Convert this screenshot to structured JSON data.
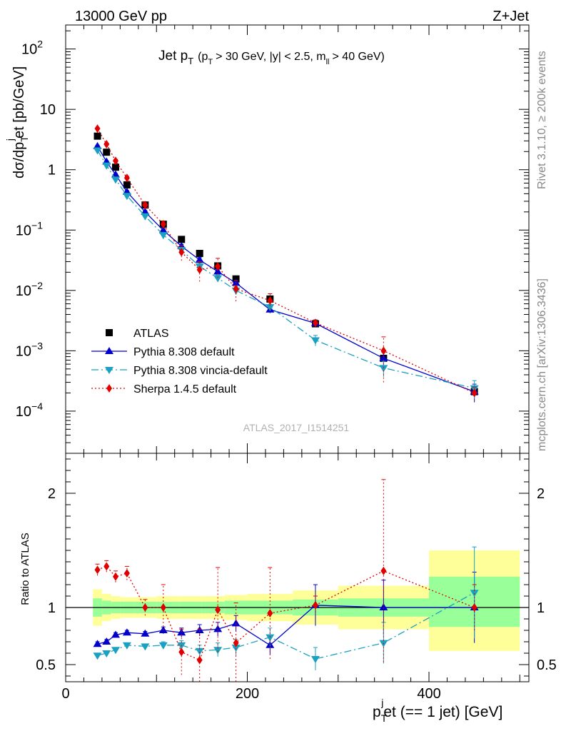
{
  "header": {
    "left": "13000 GeV pp",
    "right": "Z+Jet"
  },
  "side_labels": {
    "rivet": "Rivet 3.1.10, ≥ 200k events",
    "mcplots": "mcplots.cern.ch [arXiv:1306.3436]"
  },
  "analysis_id": "ATLAS_2017_I1514251",
  "chart_data": [
    {
      "type": "scatter",
      "panel": "main",
      "title": "Jet p_T (p_T > 30 GeV, |y| < 2.5, m_ll > 40 GeV)",
      "title_parts": {
        "main": "Jet p",
        "main_sub": "T",
        "cut1": "(p",
        "cut1_sub": "T",
        "cut2": "> 30 GeV, |y| < 2.5, m",
        "cut2_sub": "ll",
        "cut3": "> 40 GeV)"
      },
      "ylabel": "dσ/dp_T^j et [pb/GeV]",
      "ylabel_parts": {
        "a": "dσ/dp",
        "a_sub": "T",
        "a_sup": "j",
        "b": "et [pb/GeV]"
      },
      "xlim": [
        0,
        510
      ],
      "ylim": [
        2e-05,
        250
      ],
      "yscale": "log",
      "yticks": [
        {
          "v": 0.0001,
          "label": "10",
          "exp": "−4"
        },
        {
          "v": 0.001,
          "label": "10",
          "exp": "−3"
        },
        {
          "v": 0.01,
          "label": "10",
          "exp": "−2"
        },
        {
          "v": 0.1,
          "label": "10",
          "exp": "−1"
        },
        {
          "v": 1,
          "label": "1",
          "exp": ""
        },
        {
          "v": 10,
          "label": "10",
          "exp": ""
        },
        {
          "v": 100,
          "label": "10",
          "exp": "2"
        }
      ],
      "legend_position": "bottom-left",
      "x": [
        35,
        45,
        55,
        67.5,
        87.5,
        107.5,
        127.5,
        147.5,
        167.5,
        187.5,
        225,
        275,
        350,
        450
      ],
      "series": [
        {
          "name": "ATLAS",
          "color": "#000000",
          "marker": "square",
          "values": [
            3.6,
            1.95,
            1.1,
            0.56,
            0.26,
            0.125,
            0.07,
            0.041,
            0.0255,
            0.0155,
            0.0072,
            0.0028,
            0.00075,
            0.00021
          ],
          "errors": [
            0,
            0,
            0,
            0,
            0,
            0,
            0,
            0,
            0,
            0,
            0,
            0,
            0,
            0
          ]
        },
        {
          "name": "Pythia 8.308 default",
          "color": "#0000cc",
          "marker": "triangle-up",
          "line": "solid",
          "values": [
            2.45,
            1.36,
            0.83,
            0.43,
            0.2,
            0.099,
            0.054,
            0.032,
            0.0205,
            0.0133,
            0.0048,
            0.00285,
            0.00075,
            0.00021
          ],
          "errors": [
            0.08,
            0.05,
            0.03,
            0.02,
            0.01,
            0.006,
            0.004,
            0.003,
            0.002,
            0.0015,
            0.0006,
            0.0004,
            0.0002,
            7e-05
          ]
        },
        {
          "name": "Pythia 8.308 vincia-default",
          "color": "#1aa0c0",
          "marker": "triangle-down",
          "line": "dashdot",
          "values": [
            2.1,
            1.18,
            0.69,
            0.37,
            0.17,
            0.083,
            0.047,
            0.025,
            0.016,
            0.01,
            0.0053,
            0.0015,
            0.00052,
            0.00024
          ],
          "errors": [
            0.07,
            0.04,
            0.03,
            0.02,
            0.01,
            0.005,
            0.004,
            0.003,
            0.002,
            0.0015,
            0.0006,
            0.0003,
            0.00015,
            8e-05
          ]
        },
        {
          "name": "Sherpa 1.4.5 default",
          "color": "#e00000",
          "marker": "diamond",
          "line": "dotted",
          "values": [
            4.8,
            2.65,
            1.4,
            0.73,
            0.26,
            0.125,
            0.043,
            0.022,
            0.025,
            0.0106,
            0.0068,
            0.0029,
            0.001,
            0.0002
          ],
          "errors": [
            0.2,
            0.12,
            0.08,
            0.05,
            0.02,
            0.015,
            0.012,
            0.008,
            0.009,
            0.004,
            0.002,
            0.0003,
            0.0007,
            5e-05
          ]
        }
      ]
    },
    {
      "type": "scatter",
      "panel": "ratio",
      "ylabel": "Ratio to ATLAS",
      "xlabel": "p_T^j et (== 1 jet) [GeV]",
      "xlabel_parts": {
        "a": "p",
        "a_sub": "T",
        "a_sup": "j",
        "b": "et (== 1 jet) [GeV]"
      },
      "xlim": [
        0,
        510
      ],
      "ylim": [
        0.35,
        2.35
      ],
      "xticks": [
        0,
        200,
        400
      ],
      "yticks": [
        0.5,
        1,
        2
      ],
      "bins": [
        {
          "x0": 30,
          "x1": 40,
          "band_inner": [
            0.92,
            1.08
          ],
          "band_outer": [
            0.84,
            1.16
          ]
        },
        {
          "x0": 40,
          "x1": 50,
          "band_inner": [
            0.94,
            1.06
          ],
          "band_outer": [
            0.88,
            1.12
          ]
        },
        {
          "x0": 50,
          "x1": 60,
          "band_inner": [
            0.95,
            1.05
          ],
          "band_outer": [
            0.9,
            1.1
          ]
        },
        {
          "x0": 60,
          "x1": 75,
          "band_inner": [
            0.95,
            1.05
          ],
          "band_outer": [
            0.91,
            1.09
          ]
        },
        {
          "x0": 75,
          "x1": 100,
          "band_inner": [
            0.95,
            1.05
          ],
          "band_outer": [
            0.91,
            1.09
          ]
        },
        {
          "x0": 100,
          "x1": 125,
          "band_inner": [
            0.95,
            1.05
          ],
          "band_outer": [
            0.9,
            1.1
          ]
        },
        {
          "x0": 125,
          "x1": 150,
          "band_inner": [
            0.95,
            1.05
          ],
          "band_outer": [
            0.9,
            1.1
          ]
        },
        {
          "x0": 150,
          "x1": 175,
          "band_inner": [
            0.95,
            1.05
          ],
          "band_outer": [
            0.9,
            1.1
          ]
        },
        {
          "x0": 175,
          "x1": 200,
          "band_inner": [
            0.94,
            1.06
          ],
          "band_outer": [
            0.89,
            1.11
          ]
        },
        {
          "x0": 200,
          "x1": 250,
          "band_inner": [
            0.94,
            1.06
          ],
          "band_outer": [
            0.88,
            1.12
          ]
        },
        {
          "x0": 250,
          "x1": 300,
          "band_inner": [
            0.93,
            1.07
          ],
          "band_outer": [
            0.85,
            1.15
          ]
        },
        {
          "x0": 300,
          "x1": 400,
          "band_inner": [
            0.92,
            1.08
          ],
          "band_outer": [
            0.81,
            1.19
          ]
        },
        {
          "x0": 400,
          "x1": 500,
          "band_inner": [
            0.83,
            1.27
          ],
          "band_outer": [
            0.62,
            1.5
          ]
        }
      ],
      "x": [
        35,
        45,
        55,
        67.5,
        87.5,
        107.5,
        127.5,
        147.5,
        167.5,
        187.5,
        225,
        275,
        350,
        450
      ],
      "series": [
        {
          "name": "Pythia 8.308 default",
          "color": "#0000cc",
          "marker": "triangle-up",
          "line": "solid",
          "values": [
            0.68,
            0.7,
            0.76,
            0.78,
            0.77,
            0.8,
            0.78,
            0.8,
            0.81,
            0.86,
            0.67,
            1.02,
            1.0,
            1.0
          ],
          "errors": [
            0.02,
            0.02,
            0.02,
            0.02,
            0.02,
            0.03,
            0.04,
            0.05,
            0.06,
            0.07,
            0.08,
            0.18,
            0.24,
            0.31
          ]
        },
        {
          "name": "Pythia 8.308 vincia-default",
          "color": "#1aa0c0",
          "marker": "triangle-down",
          "line": "dashdot",
          "values": [
            0.58,
            0.6,
            0.63,
            0.67,
            0.66,
            0.67,
            0.67,
            0.62,
            0.63,
            0.65,
            0.74,
            0.55,
            0.69,
            1.13
          ],
          "errors": [
            0.02,
            0.02,
            0.02,
            0.02,
            0.02,
            0.03,
            0.04,
            0.05,
            0.06,
            0.07,
            0.08,
            0.1,
            0.18,
            0.4
          ]
        },
        {
          "name": "Sherpa 1.4.5 default",
          "color": "#e00000",
          "marker": "diamond",
          "line": "dotted",
          "values": [
            1.33,
            1.36,
            1.27,
            1.3,
            1.0,
            1.0,
            0.61,
            0.54,
            0.98,
            0.69,
            0.95,
            1.02,
            1.32,
            1.0
          ],
          "errors": [
            0.05,
            0.05,
            0.05,
            0.06,
            0.07,
            0.2,
            0.2,
            0.27,
            0.37,
            0.35,
            0.4,
            0.08,
            0.8,
            0.2
          ]
        }
      ]
    }
  ]
}
